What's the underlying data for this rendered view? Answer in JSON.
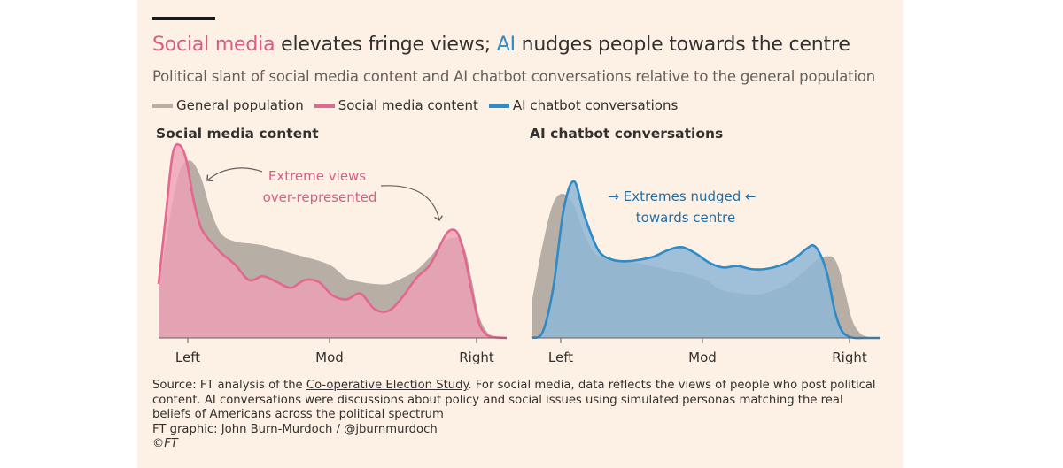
{
  "title": {
    "part1": "Social media",
    "part2": " elevates fringe views; ",
    "part3": "AI",
    "part4": " nudges people towards the centre"
  },
  "subtitle": "Political slant of social media content and AI chatbot conversations relative to the general population",
  "legend": [
    {
      "label": "General population",
      "color": "#b7aea6"
    },
    {
      "label": "Social media content",
      "color": "#e2688f"
    },
    {
      "label": "AI chatbot conversations",
      "color": "#2e8bc6"
    }
  ],
  "chart_data": [
    {
      "type": "area",
      "title": "Social media content",
      "x_ticks": [
        "Left",
        "Mod",
        "Right"
      ],
      "annotation": [
        "Extreme views",
        "over-represented"
      ],
      "series": [
        {
          "name": "General population",
          "color": "#b7aea6",
          "x": [
            0,
            0.03,
            0.06,
            0.09,
            0.12,
            0.15,
            0.18,
            0.22,
            0.26,
            0.3,
            0.34,
            0.38,
            0.42,
            0.46,
            0.5,
            0.54,
            0.58,
            0.62,
            0.66,
            0.7,
            0.74,
            0.78,
            0.82,
            0.86,
            0.88,
            0.9,
            0.92,
            0.94,
            0.96,
            1.0
          ],
          "y": [
            0.25,
            0.6,
            0.86,
            0.92,
            0.84,
            0.66,
            0.54,
            0.5,
            0.49,
            0.48,
            0.46,
            0.44,
            0.42,
            0.4,
            0.37,
            0.31,
            0.29,
            0.28,
            0.28,
            0.31,
            0.35,
            0.42,
            0.5,
            0.52,
            0.46,
            0.3,
            0.12,
            0.04,
            0.01,
            0
          ]
        },
        {
          "name": "Social media content",
          "color": "#e2688f",
          "x": [
            0,
            0.02,
            0.04,
            0.06,
            0.08,
            0.1,
            0.12,
            0.14,
            0.16,
            0.18,
            0.22,
            0.26,
            0.3,
            0.34,
            0.38,
            0.42,
            0.46,
            0.5,
            0.54,
            0.58,
            0.62,
            0.66,
            0.7,
            0.74,
            0.78,
            0.82,
            0.84,
            0.86,
            0.88,
            0.9,
            0.92,
            0.94,
            0.96,
            1.0
          ],
          "y": [
            0.28,
            0.62,
            0.95,
            1.0,
            0.92,
            0.72,
            0.58,
            0.52,
            0.48,
            0.44,
            0.38,
            0.3,
            0.32,
            0.29,
            0.26,
            0.3,
            0.29,
            0.22,
            0.2,
            0.23,
            0.15,
            0.14,
            0.21,
            0.31,
            0.38,
            0.52,
            0.56,
            0.54,
            0.42,
            0.24,
            0.08,
            0.02,
            0.005,
            0
          ]
        }
      ]
    },
    {
      "type": "area",
      "title": "AI chatbot conversations",
      "x_ticks": [
        "Left",
        "Mod",
        "Right"
      ],
      "annotation": [
        "→ Extremes nudged ←",
        "towards centre"
      ],
      "series": [
        {
          "name": "General population",
          "color": "#b7aea6",
          "x": [
            0,
            0.03,
            0.06,
            0.09,
            0.12,
            0.15,
            0.18,
            0.22,
            0.26,
            0.3,
            0.34,
            0.38,
            0.42,
            0.46,
            0.5,
            0.54,
            0.58,
            0.62,
            0.66,
            0.7,
            0.74,
            0.78,
            0.82,
            0.86,
            0.88,
            0.9,
            0.92,
            0.94,
            0.96,
            1.0
          ],
          "y": [
            0.25,
            0.6,
            0.86,
            0.92,
            0.84,
            0.66,
            0.54,
            0.5,
            0.49,
            0.48,
            0.46,
            0.44,
            0.42,
            0.4,
            0.37,
            0.31,
            0.29,
            0.28,
            0.28,
            0.31,
            0.35,
            0.42,
            0.5,
            0.52,
            0.46,
            0.3,
            0.12,
            0.04,
            0.01,
            0
          ]
        },
        {
          "name": "AI chatbot conversations",
          "color": "#2e8bc6",
          "x": [
            0,
            0.03,
            0.06,
            0.09,
            0.12,
            0.15,
            0.19,
            0.23,
            0.27,
            0.31,
            0.35,
            0.39,
            0.43,
            0.47,
            0.51,
            0.55,
            0.59,
            0.63,
            0.67,
            0.71,
            0.75,
            0.79,
            0.81,
            0.83,
            0.85,
            0.87,
            0.89,
            0.91,
            0.93,
            0.95,
            1.0
          ],
          "y": [
            0,
            0.04,
            0.32,
            0.82,
            1.0,
            0.78,
            0.56,
            0.5,
            0.49,
            0.5,
            0.52,
            0.56,
            0.58,
            0.54,
            0.48,
            0.45,
            0.46,
            0.44,
            0.44,
            0.46,
            0.5,
            0.57,
            0.59,
            0.53,
            0.4,
            0.18,
            0.05,
            0.01,
            0,
            0,
            0
          ]
        }
      ]
    }
  ],
  "panels": {
    "left_title": "Social media content",
    "right_title": "AI chatbot conversations"
  },
  "source": {
    "prefix": "Source: FT analysis of the ",
    "link": "Co-operative Election Study",
    "suffix": ". For social media, data reflects the views of people who post political content. AI conversations were discussions about policy and social issues using simulated personas matching the real beliefs of Americans across the political spectrum",
    "graphic": "FT graphic: John Burn-Murdoch / @jburnmurdoch",
    "copyright": "©FT"
  },
  "colors": {
    "background": "#fdf1e6",
    "pink_fill": "#eea0b7",
    "blue_fill": "#8fb7d6",
    "grey_fill": "#b7aea6"
  }
}
